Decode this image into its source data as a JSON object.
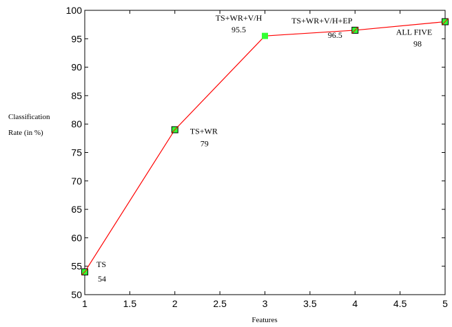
{
  "chart_data": {
    "type": "line",
    "title": "",
    "xlabel": "Features",
    "ylabel_line1": "Classification",
    "ylabel_line2": "Rate (in %)",
    "xlim": [
      1,
      5
    ],
    "ylim": [
      50,
      100
    ],
    "grid": false,
    "x_ticks": [
      "1",
      "1.5",
      "2",
      "2.5",
      "3",
      "3.5",
      "4",
      "4.5",
      "5"
    ],
    "y_ticks": [
      "50",
      "55",
      "60",
      "65",
      "70",
      "75",
      "80",
      "85",
      "90",
      "95",
      "100"
    ],
    "line_color": "#ff0000",
    "marker_color": "#33ff33",
    "points": [
      {
        "x": 1,
        "y": 54,
        "name": "TS",
        "value_label": "54"
      },
      {
        "x": 2,
        "y": 79,
        "name": "TS+WR",
        "value_label": "79"
      },
      {
        "x": 3,
        "y": 95.5,
        "name": "TS+WR+V/H",
        "value_label": "95.5"
      },
      {
        "x": 4,
        "y": 96.5,
        "name": "TS+WR+V/H+EP",
        "value_label": "96.5"
      },
      {
        "x": 5,
        "y": 98,
        "name": "ALL FIVE",
        "value_label": "98"
      }
    ]
  }
}
